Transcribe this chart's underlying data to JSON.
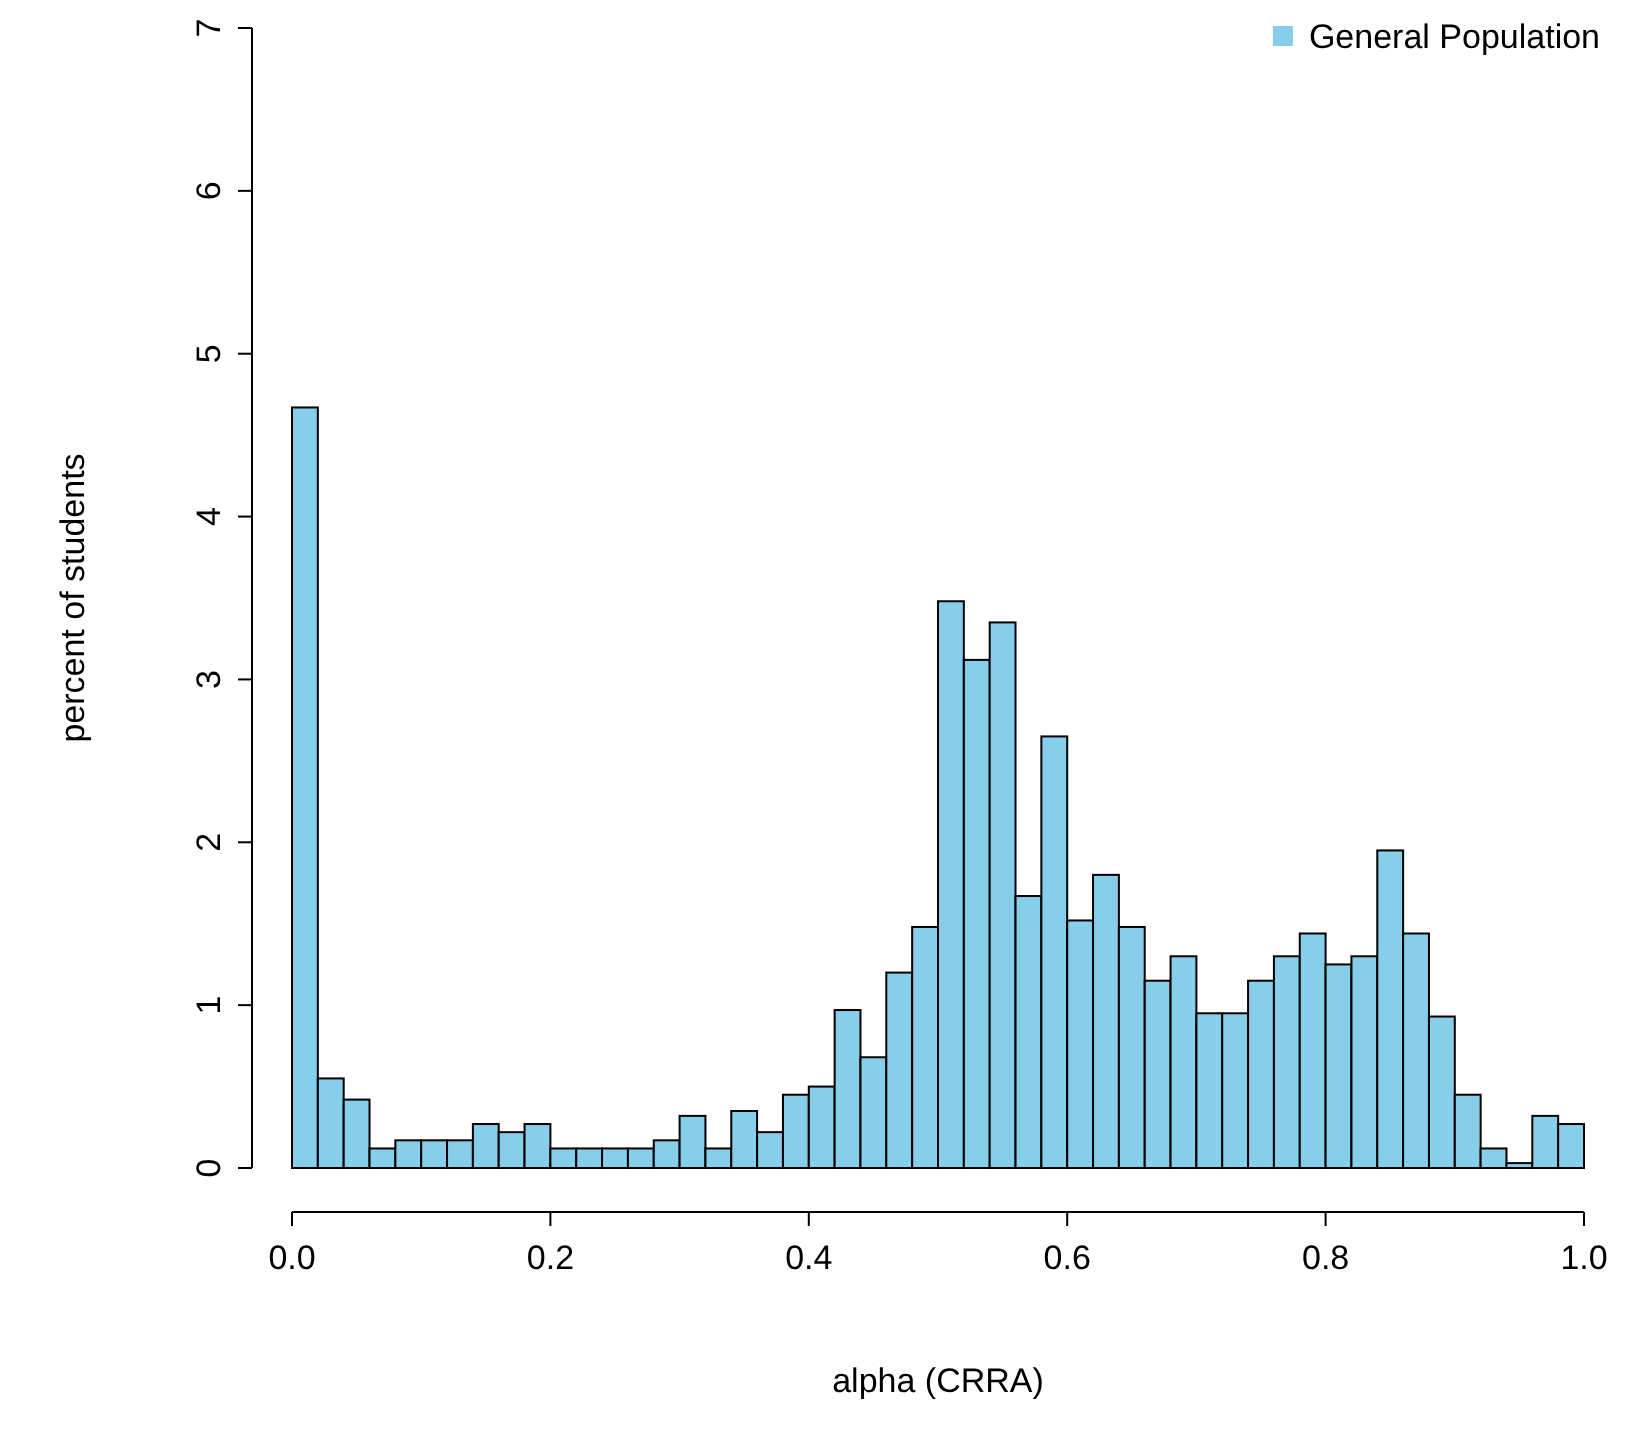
{
  "chart_data": {
    "type": "histogram",
    "xlabel": "alpha (CRRA)",
    "ylabel": "percent of students",
    "legend": "top right",
    "grid": false,
    "bins": [
      0,
      0.02,
      0.04,
      0.06,
      0.08,
      0.1,
      0.12,
      0.14,
      0.16,
      0.18,
      0.2,
      0.22,
      0.24,
      0.26,
      0.28,
      0.3,
      0.32,
      0.34,
      0.36,
      0.38,
      0.4,
      0.42,
      0.44,
      0.46,
      0.48,
      0.5,
      0.52,
      0.54,
      0.56,
      0.58,
      0.6,
      0.62,
      0.64,
      0.66,
      0.68,
      0.7,
      0.72,
      0.74,
      0.76,
      0.78,
      0.8,
      0.82,
      0.84,
      0.86,
      0.88,
      0.9,
      0.92,
      0.94,
      0.96,
      0.98,
      1
    ],
    "series": [
      {
        "name": "General Population",
        "color": "#87ceeb",
        "values": [
          4.67,
          0.55,
          0.42,
          0.12,
          0.17,
          0.17,
          0.17,
          0.27,
          0.22,
          0.27,
          0.12,
          0.12,
          0.12,
          0.12,
          0.17,
          0.32,
          0.12,
          0.35,
          0.22,
          0.45,
          0.5,
          0.97,
          0.68,
          1.2,
          1.48,
          3.48,
          3.12,
          3.35,
          1.67,
          2.65,
          1.52,
          1.8,
          1.48,
          1.15,
          1.3,
          0.95,
          0.95,
          1.15,
          1.3,
          1.44,
          1.25,
          1.3,
          1.95,
          1.44,
          0.93,
          0.45,
          0.12,
          0.03,
          0.32,
          0.27
        ]
      }
    ],
    "xlim": [
      0,
      1
    ],
    "xticks": [
      {
        "value": 0,
        "label": "0.0"
      },
      0.2,
      0.4,
      0.6,
      0.8,
      {
        "value": 1,
        "label": "1.0"
      }
    ],
    "ylim": [
      0,
      7
    ],
    "yticks": [
      0,
      1,
      2,
      3,
      4,
      5,
      6,
      7
    ]
  }
}
